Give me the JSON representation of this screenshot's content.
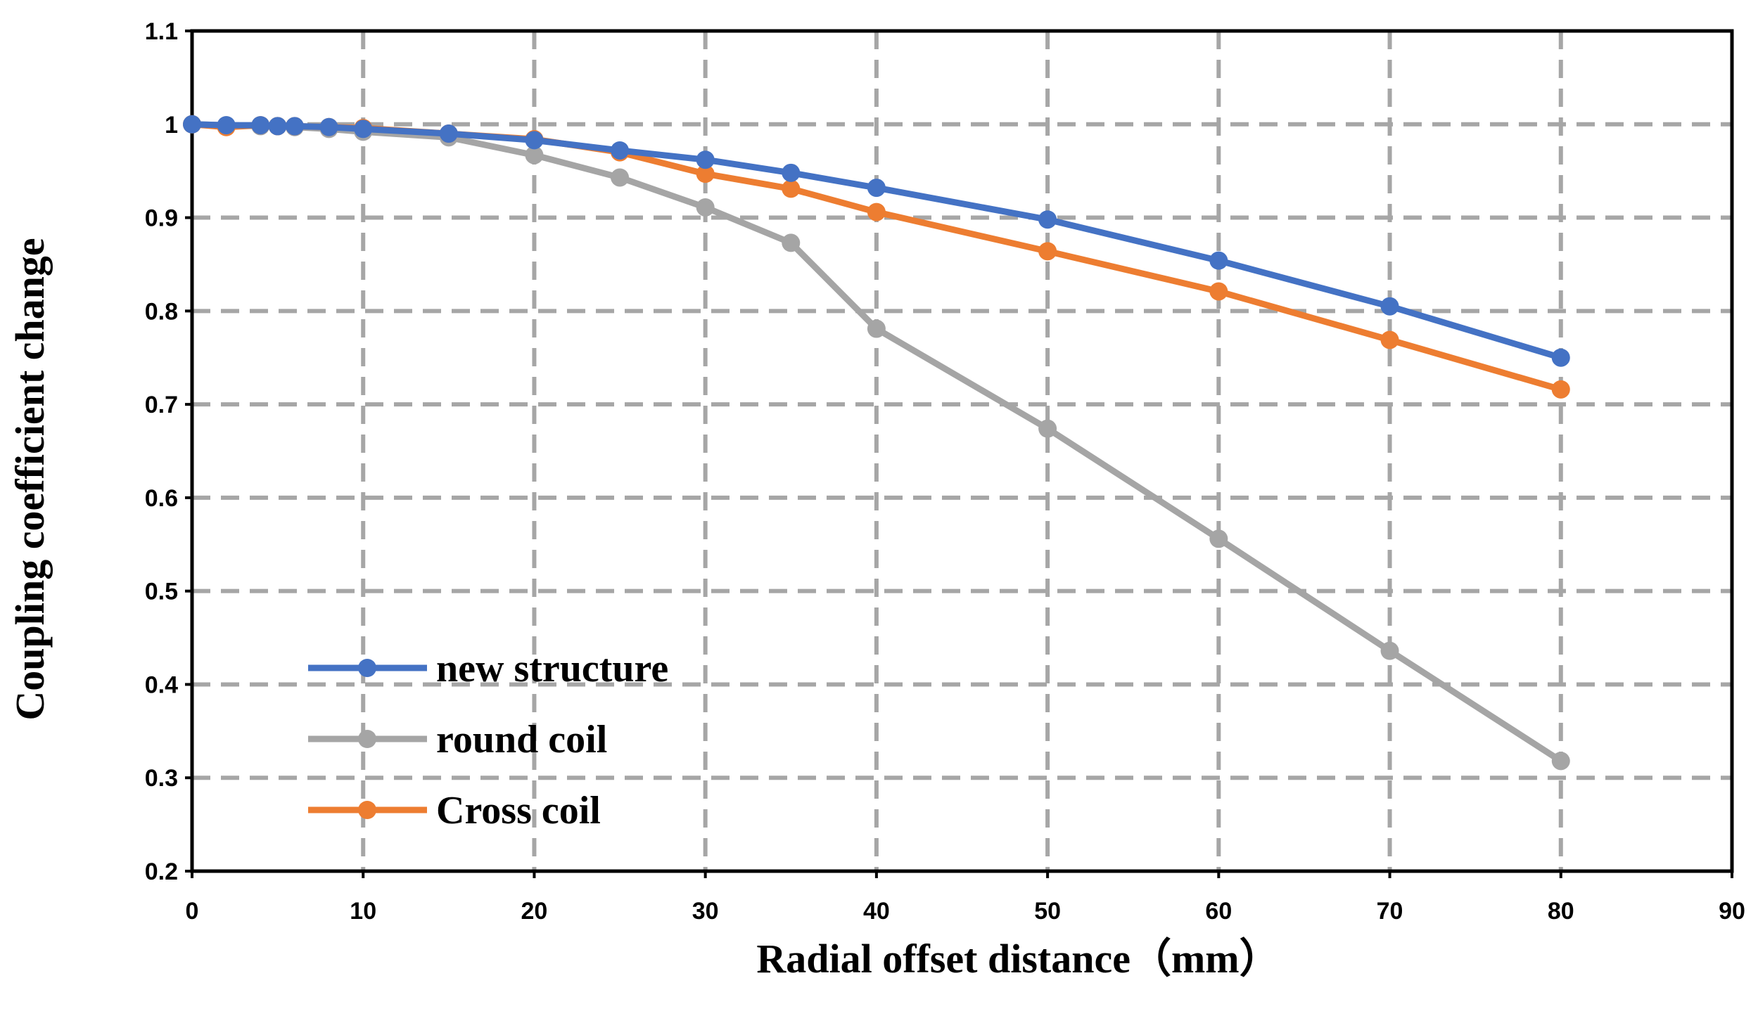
{
  "chart_data": {
    "type": "line",
    "title": "",
    "xlabel": "Radial offset distance（mm）",
    "ylabel": "Coupling coefficient change",
    "xlim": [
      0,
      90
    ],
    "ylim": [
      0.2,
      1.1
    ],
    "xticks": [
      0,
      10,
      20,
      30,
      40,
      50,
      60,
      70,
      80,
      90
    ],
    "yticks": [
      0.2,
      0.3,
      0.4,
      0.5,
      0.6,
      0.7,
      0.8,
      0.9,
      1,
      1.1
    ],
    "xtick_labels": [
      "0",
      "10",
      "20",
      "30",
      "40",
      "50",
      "60",
      "70",
      "80",
      "90"
    ],
    "ytick_labels": [
      "0.2",
      "0.3",
      "0.4",
      "0.5",
      "0.6",
      "0.7",
      "0.8",
      "0.9",
      "1",
      "1.1"
    ],
    "grid": true,
    "legend_position": "lower-left",
    "series": [
      {
        "name": "new structure",
        "color": "#4472C4",
        "x": [
          0,
          2,
          4,
          5,
          6,
          8,
          10,
          15,
          20,
          25,
          30,
          35,
          40,
          50,
          60,
          70,
          80
        ],
        "values": [
          1.0,
          0.999,
          0.999,
          0.998,
          0.998,
          0.997,
          0.995,
          0.99,
          0.983,
          0.972,
          0.962,
          0.948,
          0.932,
          0.898,
          0.854,
          0.805,
          0.75
        ]
      },
      {
        "name": "round coil",
        "color": "#A5A5A5",
        "x": [
          0,
          2,
          4,
          5,
          6,
          8,
          10,
          15,
          20,
          25,
          30,
          35,
          40,
          50,
          60,
          70,
          80
        ],
        "values": [
          1.0,
          0.999,
          0.998,
          0.998,
          0.997,
          0.995,
          0.992,
          0.986,
          0.967,
          0.943,
          0.911,
          0.873,
          0.781,
          0.674,
          0.556,
          0.436,
          0.318
        ]
      },
      {
        "name": "Cross coil",
        "color": "#ED7D31",
        "x": [
          0,
          2,
          4,
          5,
          6,
          8,
          10,
          15,
          20,
          25,
          30,
          35,
          40,
          50,
          60,
          70,
          80
        ],
        "values": [
          1.0,
          0.997,
          0.999,
          0.998,
          0.998,
          0.997,
          0.996,
          0.99,
          0.984,
          0.97,
          0.947,
          0.931,
          0.906,
          0.864,
          0.821,
          0.769,
          0.716
        ]
      }
    ]
  }
}
